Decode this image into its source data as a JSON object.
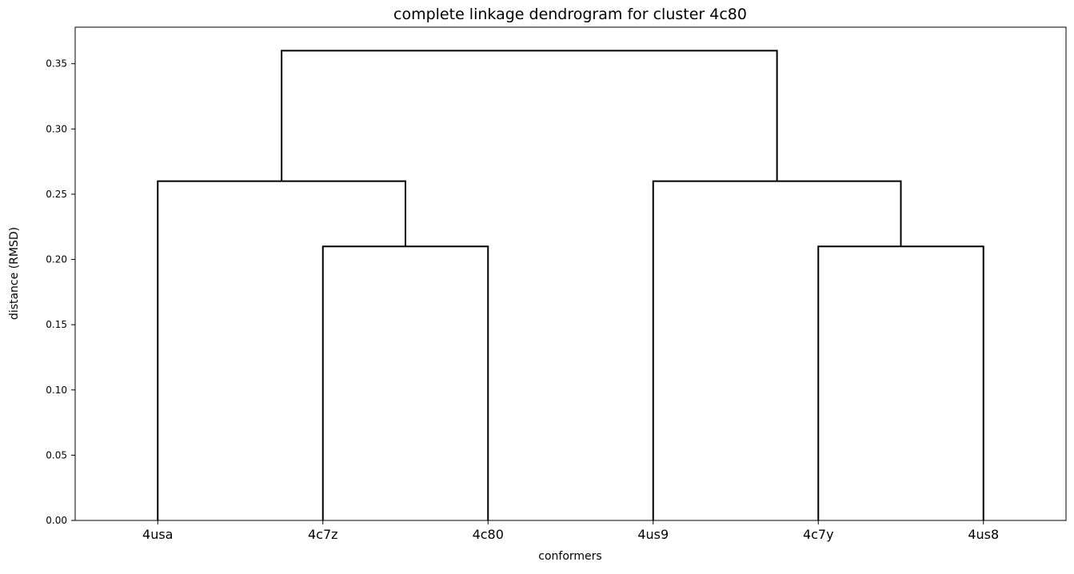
{
  "chart_data": {
    "type": "dendrogram",
    "title": "complete linkage dendrogram for cluster 4c80",
    "xlabel": "conformers",
    "ylabel": "distance (RMSD)",
    "ylim": [
      0,
      0.378
    ],
    "yticks": [
      "0.00",
      "0.05",
      "0.10",
      "0.15",
      "0.20",
      "0.25",
      "0.30",
      "0.35"
    ],
    "ytick_values": [
      0,
      0.05,
      0.1,
      0.15,
      0.2,
      0.25,
      0.3,
      0.35
    ],
    "leaves": [
      "4usa",
      "4c7z",
      "4c80",
      "4us9",
      "4c7y",
      "4us8"
    ],
    "merges": [
      {
        "left": "4c7z",
        "right": "4c80",
        "height": 0.21
      },
      {
        "left": "4c7y",
        "right": "4us8",
        "height": 0.21
      },
      {
        "left": "4usa",
        "right": "4c7z+4c80",
        "height": 0.26
      },
      {
        "left": "4us9",
        "right": "4c7y+4us8",
        "height": 0.26
      },
      {
        "left": "4usa+4c7z+4c80",
        "right": "4us9+4c7y+4us8",
        "height": 0.36
      }
    ],
    "link_color": "#000000",
    "grid": false
  }
}
